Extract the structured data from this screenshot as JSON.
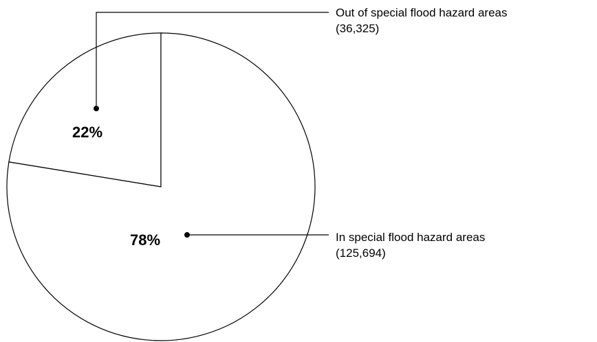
{
  "chart_data": {
    "type": "pie",
    "title": "",
    "slices": [
      {
        "name": "Out of special flood hazard areas",
        "count_label": "(36,325)",
        "count": 36325,
        "percent_label": "22%",
        "percent": 22
      },
      {
        "name": "In special flood hazard areas",
        "count_label": "(125,694)",
        "count": 125694,
        "percent_label": "78%",
        "percent": 78
      }
    ],
    "colors": {
      "fill": "#ffffff",
      "stroke": "#000000"
    }
  }
}
